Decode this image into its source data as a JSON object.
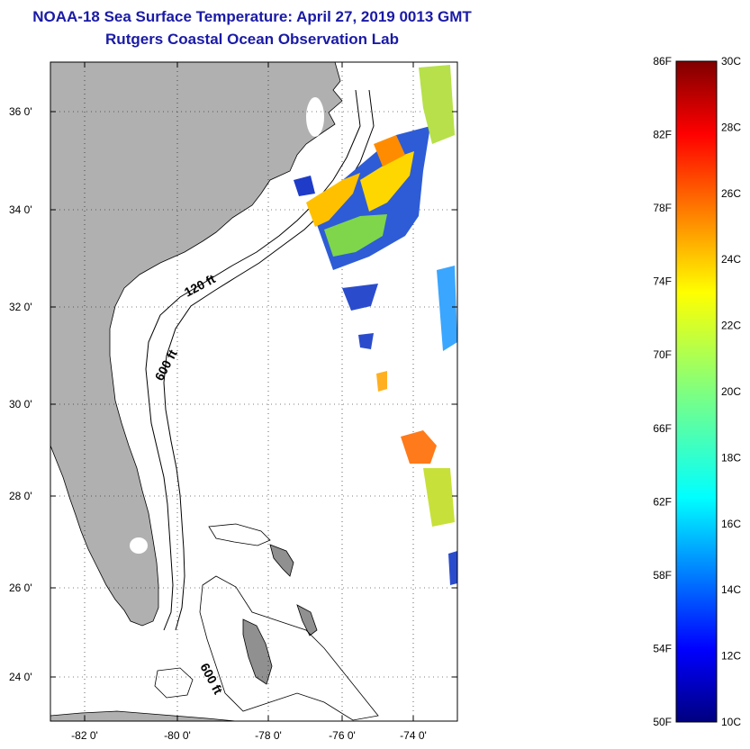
{
  "header": {
    "title": "NOAA-18 Sea Surface Temperature:  April 27, 2019 0013 GMT",
    "subtitle": "Rutgers Coastal Ocean Observation Lab"
  },
  "map": {
    "region": "US Southeast coast and Bahamas",
    "lon_range": [
      -83,
      -73
    ],
    "lat_range": [
      23,
      37
    ],
    "grid": "dotted",
    "land_color": "#b0b0b0",
    "ocean_color": "#ffffff",
    "lat_labels": [
      "36 0'",
      "34 0'",
      "32 0'",
      "30 0'",
      "28 0'",
      "26 0'",
      "24 0'"
    ],
    "lon_labels": [
      "-82 0'",
      "-80 0'",
      "-78 0'",
      "-76 0'",
      "-74 0'"
    ],
    "contour_labels": [
      "120 ft",
      "600 ft",
      "600 ft"
    ]
  },
  "colorbar": {
    "fahrenheit_labels": [
      "86F",
      "82F",
      "78F",
      "74F",
      "70F",
      "66F",
      "62F",
      "58F",
      "54F",
      "50F"
    ],
    "celsius_labels": [
      "30C",
      "28C",
      "26C",
      "24C",
      "22C",
      "20C",
      "18C",
      "16C",
      "14C",
      "12C",
      "10C"
    ],
    "range_c": [
      10,
      30
    ],
    "colormap": "jet"
  }
}
